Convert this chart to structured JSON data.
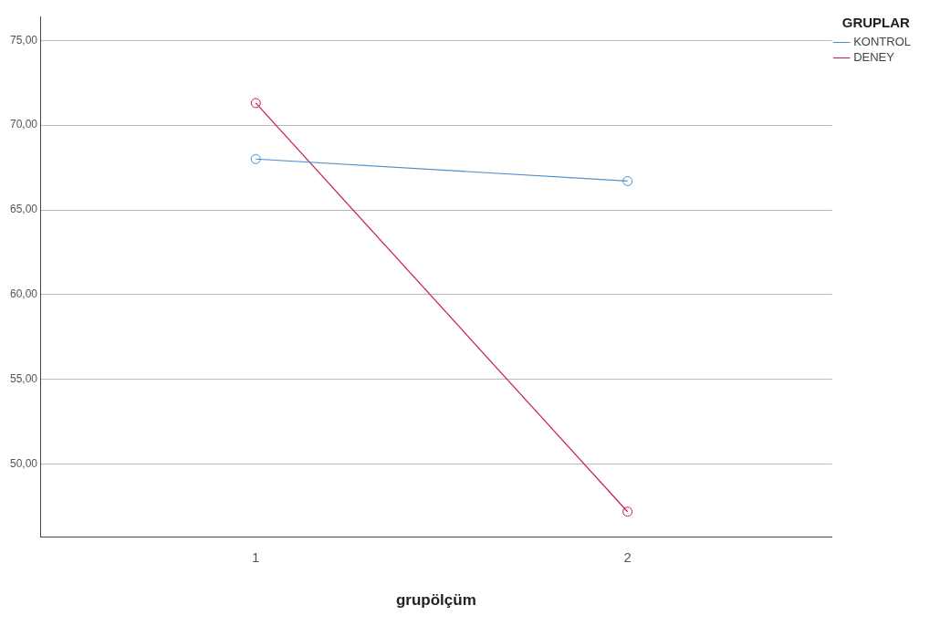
{
  "chart_data": {
    "type": "line",
    "xlabel": "grupölçüm",
    "legend_title": "GRUPLAR",
    "x": [
      1,
      2
    ],
    "xlim": [
      0.42,
      2.55
    ],
    "xticks": [
      1,
      2
    ],
    "ylim": [
      45.7,
      76.4
    ],
    "yticks": [
      {
        "value": 50,
        "label": "50,00"
      },
      {
        "value": 55,
        "label": "55,00"
      },
      {
        "value": 60,
        "label": "60,00"
      },
      {
        "value": 65,
        "label": "65,00"
      },
      {
        "value": 70,
        "label": "70,00"
      },
      {
        "value": 75,
        "label": "75,00"
      }
    ],
    "grid": "y",
    "legend": "top right",
    "marker": "circle",
    "line_style": "solid",
    "series": [
      {
        "name": "KONTROL",
        "color": "#4a8fcc",
        "values": [
          68.0,
          66.7
        ]
      },
      {
        "name": "DENEY",
        "color": "#c8174c",
        "values": [
          71.3,
          47.2
        ]
      }
    ]
  }
}
